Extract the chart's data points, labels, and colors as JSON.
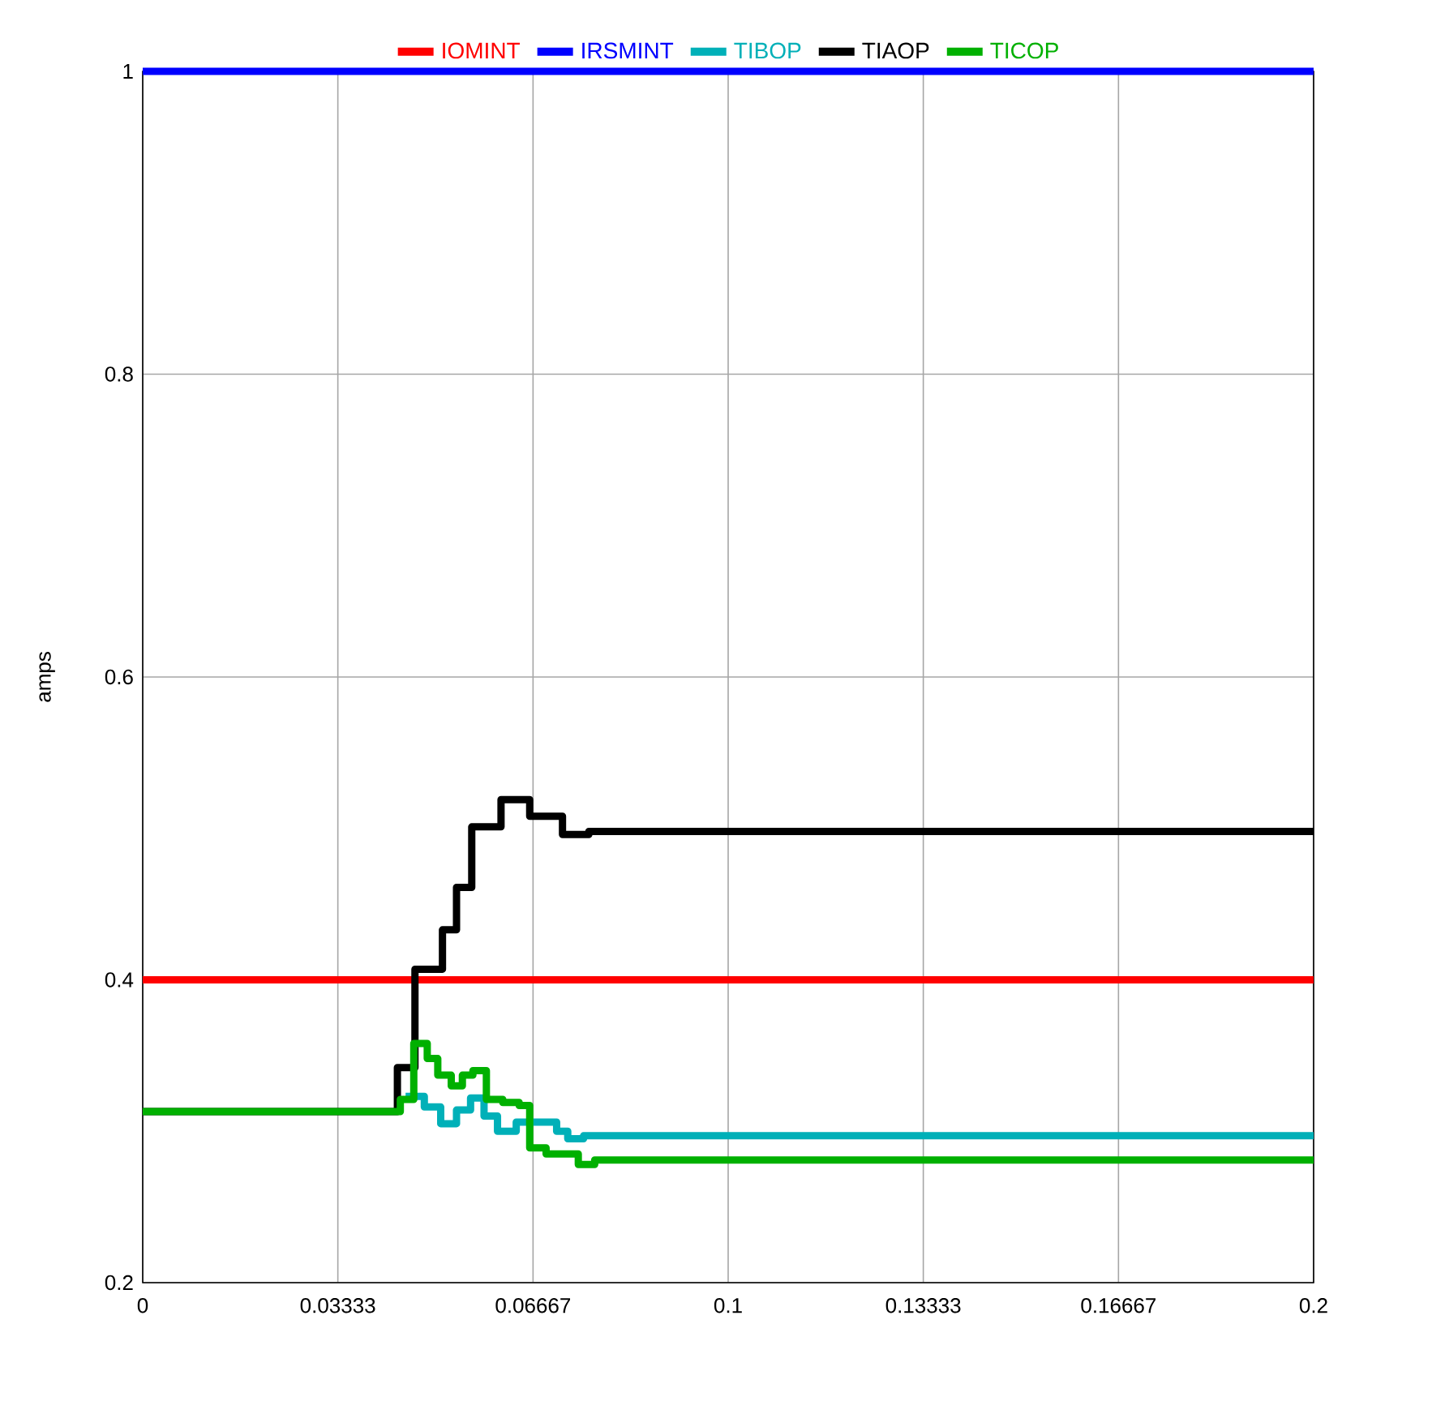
{
  "chart_data": {
    "type": "step",
    "ylabel": "amps",
    "xlim": [
      0,
      0.2
    ],
    "ylim": [
      0.2,
      1
    ],
    "xticks": [
      0,
      {
        "value": 0.03333,
        "label": "0.03333"
      },
      {
        "value": 0.06667,
        "label": "0.06667"
      },
      0.1,
      {
        "value": 0.13333,
        "label": "0.13333"
      },
      {
        "value": 0.16667,
        "label": "0.16667"
      },
      0.2
    ],
    "yticks": [
      0.2,
      0.4,
      0.6,
      0.8,
      1
    ],
    "grid": true,
    "legend": "top",
    "line_style": "solid",
    "marker": "none",
    "series": [
      {
        "name": "IOMINT",
        "color": "#ff0000",
        "x": [
          0,
          0.2
        ],
        "values": [
          0.4,
          0.4
        ]
      },
      {
        "name": "IRSMINT",
        "color": "#0000ff",
        "x": [
          0,
          0.2
        ],
        "values": [
          1,
          1
        ]
      },
      {
        "name": "TIBOP",
        "color": "#00b0b8",
        "x": [
          0.0449,
          0.0481,
          0.0509,
          0.0536,
          0.056,
          0.0583,
          0.0606,
          0.0638,
          0.0707,
          0.0726,
          0.0753,
          0.2
        ],
        "values": [
          0.323,
          0.316,
          0.305,
          0.314,
          0.322,
          0.31,
          0.3,
          0.306,
          0.3,
          0.295,
          0.297,
          0.297
        ]
      },
      {
        "name": "TIAOP",
        "color": "#000000",
        "x": [
          0,
          0.0435,
          0.0465,
          0.0512,
          0.0536,
          0.0562,
          0.0612,
          0.0661,
          0.0717,
          0.0762,
          0.2
        ],
        "values": [
          0.313,
          0.342,
          0.407,
          0.433,
          0.461,
          0.501,
          0.519,
          0.508,
          0.496,
          0.498,
          0.498
        ]
      },
      {
        "name": "TICOP",
        "color": "#00b000",
        "x": [
          0,
          0.044,
          0.0463,
          0.0486,
          0.0504,
          0.0527,
          0.0546,
          0.0564,
          0.0587,
          0.0615,
          0.0643,
          0.0661,
          0.0689,
          0.0744,
          0.0772,
          0.2
        ],
        "values": [
          0.313,
          0.321,
          0.358,
          0.348,
          0.337,
          0.33,
          0.337,
          0.34,
          0.321,
          0.319,
          0.317,
          0.289,
          0.285,
          0.278,
          0.281,
          0.281
        ]
      }
    ]
  }
}
